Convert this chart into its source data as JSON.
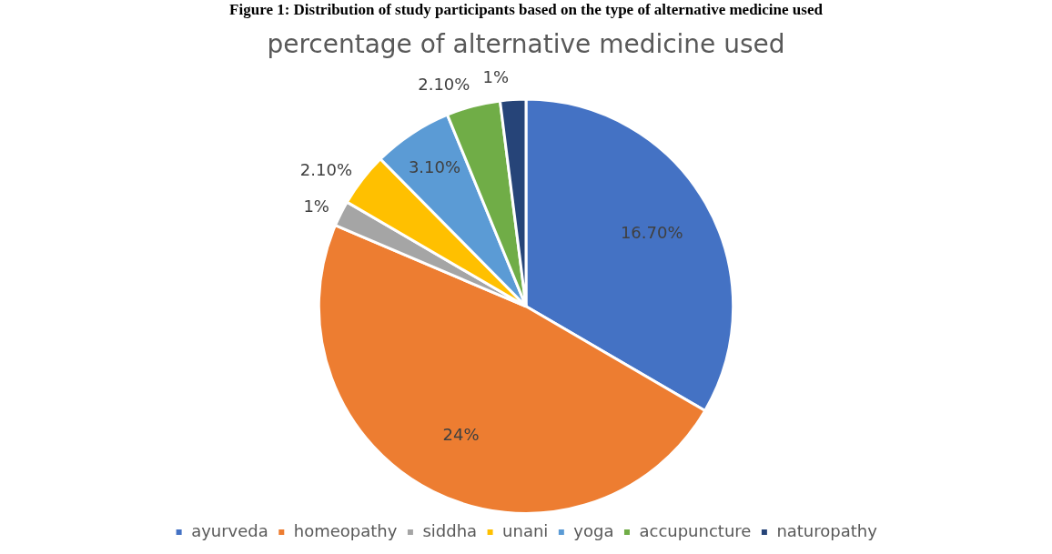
{
  "chart_data": {
    "type": "pie",
    "title": "percentage of alternative medicine used",
    "annotations": [
      "Figure 1: Distribution of study participants based on the type of alternative medicine used"
    ],
    "categories": [
      "ayurveda",
      "homeopathy",
      "siddha",
      "unani",
      "yoga",
      "accupuncture",
      "naturopathy"
    ],
    "values": [
      16.7,
      24,
      1,
      2.1,
      3.1,
      2.1,
      1
    ],
    "value_labels": [
      "16.70%",
      "24%",
      "1%",
      "2.10%",
      "3.10%",
      "2.10%",
      "1%"
    ],
    "colors": [
      "#4472c4",
      "#ed7d31",
      "#a5a5a5",
      "#ffc000",
      "#5b9bd5",
      "#70ad47",
      "#264478"
    ],
    "legend": "bottom"
  }
}
